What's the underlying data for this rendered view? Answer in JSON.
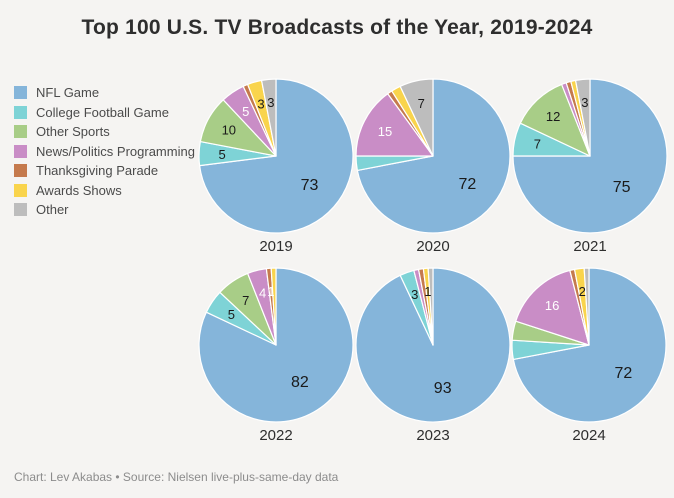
{
  "header": {
    "title": "Top 100 U.S. TV Broadcasts of the Year, 2019-2024"
  },
  "footer": {
    "credit": "Chart: Lev Akabas • Source: Nielsen live-plus-same-day data"
  },
  "chart_data": {
    "type": "pie",
    "title": "Top 100 U.S. TV Broadcasts of the Year, 2019-2024",
    "legend_position": "top-left",
    "categories": [
      "NFL Game",
      "College Football Game",
      "Other Sports",
      "News/Politics Programming",
      "Thanksgiving Parade",
      "Awards Shows",
      "Other"
    ],
    "colors": [
      "#85b5da",
      "#7ed3d6",
      "#a8cd87",
      "#c98dc6",
      "#c57a4d",
      "#f9d44c",
      "#bdbdbd"
    ],
    "legend": [
      {
        "label": "NFL Game",
        "color": "#85b5da"
      },
      {
        "label": "College Football Game",
        "color": "#7ed3d6"
      },
      {
        "label": "Other Sports",
        "color": "#a8cd87"
      },
      {
        "label": "News/Politics Programming",
        "color": "#c98dc6"
      },
      {
        "label": "Thanksgiving Parade",
        "color": "#c57a4d"
      },
      {
        "label": "Awards Shows",
        "color": "#f9d44c"
      },
      {
        "label": "Other",
        "color": "#bdbdbd"
      }
    ],
    "pies": [
      {
        "year": "2019",
        "values": [
          73,
          5,
          10,
          5,
          1,
          3,
          3
        ],
        "labels": [
          "73",
          "5",
          "10",
          "5",
          "",
          "3",
          "3"
        ],
        "label_white": [
          false,
          false,
          false,
          true,
          false,
          false,
          false
        ]
      },
      {
        "year": "2020",
        "values": [
          72,
          3,
          0,
          15,
          1,
          2,
          7
        ],
        "labels": [
          "72",
          "",
          "",
          "15",
          "",
          "",
          "7"
        ],
        "label_white": [
          false,
          false,
          false,
          true,
          false,
          false,
          false
        ]
      },
      {
        "year": "2021",
        "values": [
          75,
          7,
          12,
          1,
          1,
          1,
          3
        ],
        "labels": [
          "75",
          "7",
          "12",
          "",
          "",
          "",
          "3"
        ],
        "label_white": [
          false,
          false,
          false,
          false,
          false,
          false,
          false
        ]
      },
      {
        "year": "2022",
        "values": [
          82,
          5,
          7,
          4,
          1,
          1,
          0
        ],
        "labels": [
          "82",
          "5",
          "7",
          "4",
          "1",
          "",
          ""
        ],
        "label_white": [
          false,
          false,
          false,
          true,
          true,
          false,
          false
        ]
      },
      {
        "year": "2023",
        "values": [
          93,
          3,
          0,
          1,
          1,
          1,
          1
        ],
        "labels": [
          "93",
          "3",
          "",
          "",
          "",
          "1",
          ""
        ],
        "label_white": [
          false,
          false,
          false,
          false,
          false,
          false,
          false
        ]
      },
      {
        "year": "2024",
        "values": [
          72,
          4,
          4,
          16,
          1,
          2,
          1
        ],
        "labels": [
          "72",
          "",
          "",
          "16",
          "",
          "2",
          ""
        ],
        "label_white": [
          false,
          false,
          false,
          true,
          false,
          false,
          false
        ]
      }
    ],
    "total_per_pie": 100
  }
}
